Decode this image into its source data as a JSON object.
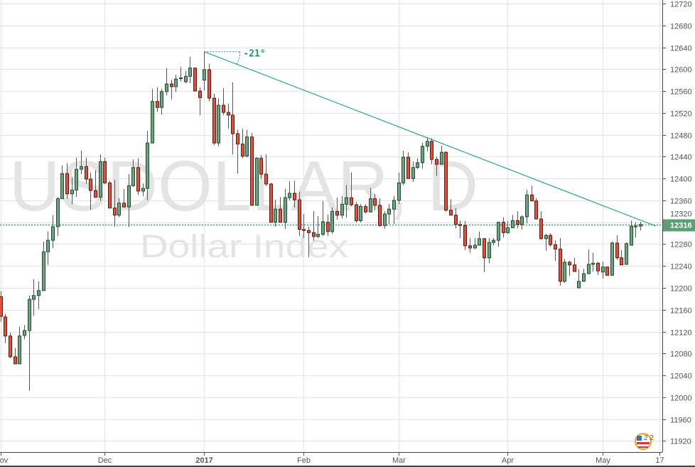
{
  "watermark": {
    "symbol": "USDOLLAR, D",
    "description": "Dollar Index"
  },
  "logo": {
    "text": "2 2",
    "icon": "flag-globe-logo"
  },
  "colors": {
    "up_fill": "#6aa57f",
    "up_border": "#1d4d2a",
    "down_fill": "#e0513d",
    "down_border": "#5e1a10",
    "wick": "#555555",
    "grid": "#e4e4e4",
    "trendline": "#2aa88e",
    "price_line": "#2e7d55",
    "price_label_bg": "#5d9f74"
  },
  "chart_data": {
    "type": "candlestick",
    "interval": "D",
    "ylim": [
      11920,
      12720
    ],
    "y_ticks": [
      "11920",
      "11960",
      "12000",
      "12040",
      "12080",
      "12120",
      "12160",
      "12200",
      "12240",
      "12280",
      "12320",
      "12360",
      "12400",
      "12440",
      "12480",
      "12520",
      "12560",
      "12600",
      "12640",
      "12680",
      "12720"
    ],
    "x_ticks": [
      {
        "label": "Nov",
        "bar": 0,
        "bold": false
      },
      {
        "label": "Dec",
        "bar": 22,
        "bold": false
      },
      {
        "label": "2017",
        "bar": 43,
        "bold": true
      },
      {
        "label": "Feb",
        "bar": 64,
        "bold": false
      },
      {
        "label": "Mar",
        "bar": 84,
        "bold": false
      },
      {
        "label": "Apr",
        "bar": 107,
        "bold": false
      },
      {
        "label": "May",
        "bar": 127,
        "bold": false
      },
      {
        "label": "17",
        "bar": 139,
        "bold": false
      }
    ],
    "grid": true,
    "last_price": "12316",
    "ohlc_order": [
      "open",
      "high",
      "low",
      "close"
    ],
    "candles": [
      [
        12184,
        12194,
        12138,
        12148
      ],
      [
        12147,
        12152,
        12099,
        12112
      ],
      [
        12112,
        12118,
        12071,
        12074
      ],
      [
        12074,
        12090,
        12061,
        12061
      ],
      [
        12061,
        12129,
        12061,
        12112
      ],
      [
        12113,
        12132,
        12106,
        12122
      ],
      [
        12122,
        12186,
        12012,
        12179
      ],
      [
        12179,
        12216,
        12149,
        12186
      ],
      [
        12186,
        12212,
        12161,
        12195
      ],
      [
        12195,
        12285,
        12195,
        12266
      ],
      [
        12266,
        12303,
        12242,
        12287
      ],
      [
        12287,
        12333,
        12273,
        12312
      ],
      [
        12312,
        12366,
        12295,
        12363
      ],
      [
        12363,
        12424,
        12363,
        12409
      ],
      [
        12409,
        12428,
        12363,
        12372
      ],
      [
        12372,
        12402,
        12353,
        12379
      ],
      [
        12379,
        12438,
        12366,
        12417
      ],
      [
        12417,
        12451,
        12408,
        12422
      ],
      [
        12422,
        12438,
        12390,
        12399
      ],
      [
        12399,
        12411,
        12343,
        12378
      ],
      [
        12378,
        12415,
        12364,
        12366
      ],
      [
        12366,
        12444,
        12359,
        12431
      ],
      [
        12431,
        12438,
        12390,
        12392
      ],
      [
        12392,
        12396,
        12346,
        12346
      ],
      [
        12346,
        12398,
        12312,
        12333
      ],
      [
        12333,
        12364,
        12329,
        12355
      ],
      [
        12355,
        12381,
        12348,
        12348
      ],
      [
        12348,
        12408,
        12312,
        12387
      ],
      [
        12387,
        12435,
        12385,
        12420
      ],
      [
        12420,
        12437,
        12370,
        12377
      ],
      [
        12377,
        12391,
        12368,
        12382
      ],
      [
        12382,
        12487,
        12360,
        12465
      ],
      [
        12465,
        12564,
        12465,
        12541
      ],
      [
        12541,
        12567,
        12522,
        12530
      ],
      [
        12530,
        12564,
        12517,
        12559
      ],
      [
        12559,
        12602,
        12552,
        12573
      ],
      [
        12573,
        12581,
        12545,
        12568
      ],
      [
        12568,
        12590,
        12558,
        12582
      ],
      [
        12583,
        12604,
        12577,
        12584
      ],
      [
        12577,
        12597,
        12574,
        12587
      ],
      [
        12587,
        12623,
        12574,
        12602
      ],
      [
        12602,
        12603,
        12560,
        12560
      ],
      [
        12560,
        12567,
        12516,
        12548
      ],
      [
        12580,
        12632,
        12561,
        12599
      ],
      [
        12599,
        12610,
        12541,
        12547
      ],
      [
        12547,
        12555,
        12461,
        12465
      ],
      [
        12465,
        12547,
        12459,
        12534
      ],
      [
        12534,
        12565,
        12516,
        12521
      ],
      [
        12521,
        12537,
        12491,
        12516
      ],
      [
        12516,
        12576,
        12444,
        12482
      ],
      [
        12482,
        12489,
        12409,
        12463
      ],
      [
        12463,
        12491,
        12437,
        12441
      ],
      [
        12441,
        12489,
        12439,
        12476
      ],
      [
        12476,
        12483,
        12351,
        12351
      ],
      [
        12351,
        12439,
        12351,
        12437
      ],
      [
        12437,
        12443,
        12400,
        12408
      ],
      [
        12408,
        12444,
        12386,
        12390
      ],
      [
        12390,
        12392,
        12320,
        12320
      ],
      [
        12320,
        12361,
        12312,
        12344
      ],
      [
        12344,
        12366,
        12320,
        12320
      ],
      [
        12320,
        12381,
        12308,
        12365
      ],
      [
        12365,
        12395,
        12360,
        12373
      ],
      [
        12373,
        12396,
        12347,
        12361
      ],
      [
        12361,
        12376,
        12295,
        12307
      ],
      [
        12307,
        12335,
        12291,
        12305
      ],
      [
        12305,
        12312,
        12256,
        12301
      ],
      [
        12301,
        12340,
        12286,
        12294
      ],
      [
        12294,
        12331,
        12291,
        12298
      ],
      [
        12298,
        12359,
        12295,
        12321
      ],
      [
        12320,
        12334,
        12295,
        12303
      ],
      [
        12303,
        12347,
        12299,
        12340
      ],
      [
        12340,
        12365,
        12325,
        12333
      ],
      [
        12333,
        12368,
        12327,
        12353
      ],
      [
        12353,
        12388,
        12329,
        12365
      ],
      [
        12365,
        12411,
        12349,
        12352
      ],
      [
        12352,
        12357,
        12320,
        12323
      ],
      [
        12323,
        12353,
        12320,
        12349
      ],
      [
        12349,
        12353,
        12336,
        12339
      ],
      [
        12339,
        12383,
        12338,
        12363
      ],
      [
        12363,
        12372,
        12342,
        12351
      ],
      [
        12351,
        12364,
        12312,
        12314
      ],
      [
        12314,
        12340,
        12308,
        12335
      ],
      [
        12335,
        12353,
        12317,
        12344
      ],
      [
        12344,
        12368,
        12317,
        12360
      ],
      [
        12360,
        12411,
        12353,
        12392
      ],
      [
        12392,
        12451,
        12388,
        12439
      ],
      [
        12439,
        12448,
        12400,
        12400
      ],
      [
        12400,
        12431,
        12394,
        12420
      ],
      [
        12420,
        12437,
        12418,
        12429
      ],
      [
        12429,
        12465,
        12418,
        12459
      ],
      [
        12459,
        12476,
        12450,
        12468
      ],
      [
        12468,
        12474,
        12426,
        12435
      ],
      [
        12435,
        12440,
        12405,
        12426
      ],
      [
        12426,
        12460,
        12426,
        12448
      ],
      [
        12448,
        12450,
        12339,
        12342
      ],
      [
        12342,
        12362,
        12333,
        12333
      ],
      [
        12333,
        12346,
        12309,
        12316
      ],
      [
        12316,
        12323,
        12291,
        12314
      ],
      [
        12314,
        12322,
        12269,
        12277
      ],
      [
        12277,
        12291,
        12264,
        12273
      ],
      [
        12273,
        12291,
        12271,
        12278
      ],
      [
        12278,
        12303,
        12278,
        12290
      ],
      [
        12290,
        12291,
        12229,
        12255
      ],
      [
        12255,
        12291,
        12245,
        12283
      ],
      [
        12283,
        12291,
        12278,
        12287
      ],
      [
        12287,
        12321,
        12275,
        12320
      ],
      [
        12320,
        12329,
        12292,
        12301
      ],
      [
        12301,
        12322,
        12299,
        12310
      ],
      [
        12310,
        12333,
        12310,
        12323
      ],
      [
        12323,
        12340,
        12309,
        12316
      ],
      [
        12316,
        12333,
        12307,
        12330
      ],
      [
        12330,
        12379,
        12318,
        12370
      ],
      [
        12370,
        12387,
        12359,
        12359
      ],
      [
        12359,
        12364,
        12326,
        12326
      ],
      [
        12326,
        12340,
        12288,
        12290
      ],
      [
        12290,
        12299,
        12268,
        12296
      ],
      [
        12296,
        12300,
        12275,
        12279
      ],
      [
        12279,
        12287,
        12249,
        12271
      ],
      [
        12271,
        12291,
        12204,
        12212
      ],
      [
        12212,
        12253,
        12209,
        12247
      ],
      [
        12247,
        12249,
        12222,
        12242
      ],
      [
        12242,
        12255,
        12230,
        12230
      ],
      [
        12200,
        12234,
        12200,
        12212
      ],
      [
        12212,
        12235,
        12212,
        12226
      ],
      [
        12226,
        12270,
        12225,
        12243
      ],
      [
        12243,
        12264,
        12230,
        12245
      ],
      [
        12245,
        12248,
        12223,
        12231
      ],
      [
        12229,
        12248,
        12217,
        12238
      ],
      [
        12238,
        12239,
        12223,
        12223
      ],
      [
        12223,
        12285,
        12223,
        12282
      ],
      [
        12282,
        12296,
        12251,
        12255
      ],
      [
        12255,
        12269,
        12242,
        12242
      ],
      [
        12243,
        12283,
        12243,
        12281
      ],
      [
        12278,
        12323,
        12277,
        12313
      ],
      [
        12313,
        12320,
        12292,
        12313
      ],
      [
        12313,
        12321,
        12305,
        12316
      ]
    ],
    "trendline": {
      "start": {
        "bar": 43,
        "price": 12632
      },
      "end": {
        "bar": 138.3,
        "price": 12313
      },
      "angle_label": "-21°"
    }
  }
}
